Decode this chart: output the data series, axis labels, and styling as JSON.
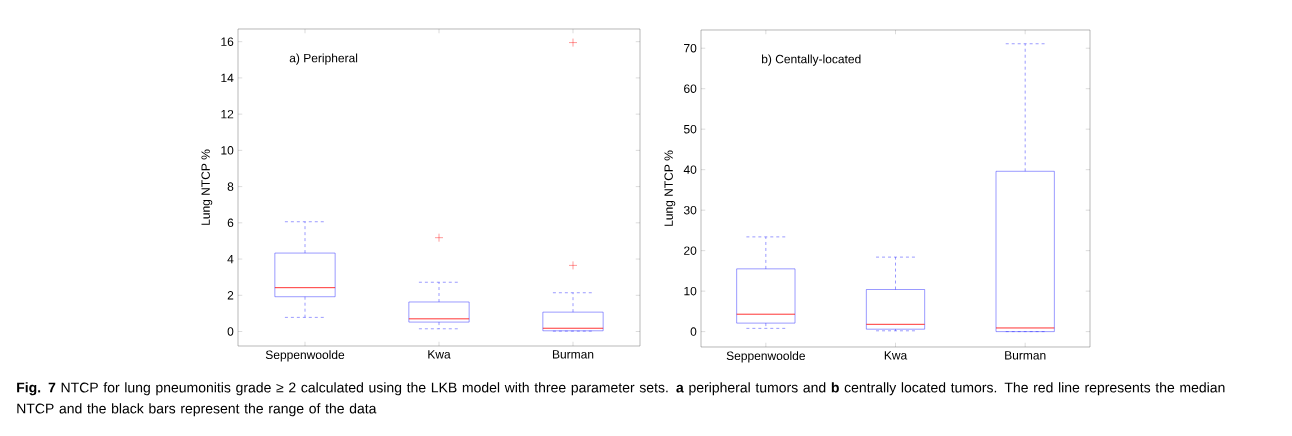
{
  "chart_data": [
    {
      "type": "box",
      "categories": [
        "Seppenwoolde",
        "Kwa",
        "Burman"
      ],
      "ylabel": "Lung NTCP %",
      "ylim": [
        -0.8,
        16.7
      ],
      "yticks": [
        0,
        2,
        4,
        6,
        8,
        10,
        12,
        14,
        16
      ],
      "color": "#0000ff",
      "boxes": [
        {
          "low": 0.78,
          "q1": 1.92,
          "median": 2.42,
          "q3": 4.33,
          "high": 6.06
        },
        {
          "low": 0.15,
          "q1": 0.52,
          "median": 0.7,
          "q3": 1.63,
          "high": 2.72,
          "outliers": [
            5.18
          ]
        },
        {
          "low": 0.02,
          "q1": 0.04,
          "median": 0.18,
          "q3": 1.07,
          "high": 2.14,
          "outliers": [
            3.65,
            15.95
          ]
        }
      ],
      "annotations": [
        "a) Peripheral",
        "**Fig. 7** NTCP for lung pneumonitis grade ≥ 2 calculated using the LKB model with three parameter sets. **a** peripheral tumors and **b** centrally located tumors. The red line represents the median NTCP and the black bars represent the range of the data"
      ]
    },
    {
      "type": "box",
      "categories": [
        "Seppenwoolde",
        "Kwa",
        "Burman"
      ],
      "ylabel": "Lung NTCP %",
      "ylim": [
        -3.8,
        74.5
      ],
      "yticks": [
        0,
        10,
        20,
        30,
        40,
        50,
        60,
        70
      ],
      "color": "#0000ff",
      "boxes": [
        {
          "low": 0.8,
          "q1": 2.1,
          "median": 4.3,
          "q3": 15.5,
          "high": 23.4
        },
        {
          "low": 0.2,
          "q1": 0.6,
          "median": 1.8,
          "q3": 10.4,
          "high": 18.4
        },
        {
          "low": 0,
          "q1": 0,
          "median": 0.9,
          "q3": 39.6,
          "high": 71.1
        }
      ],
      "annotations": [
        "b) Centally-located"
      ]
    }
  ]
}
